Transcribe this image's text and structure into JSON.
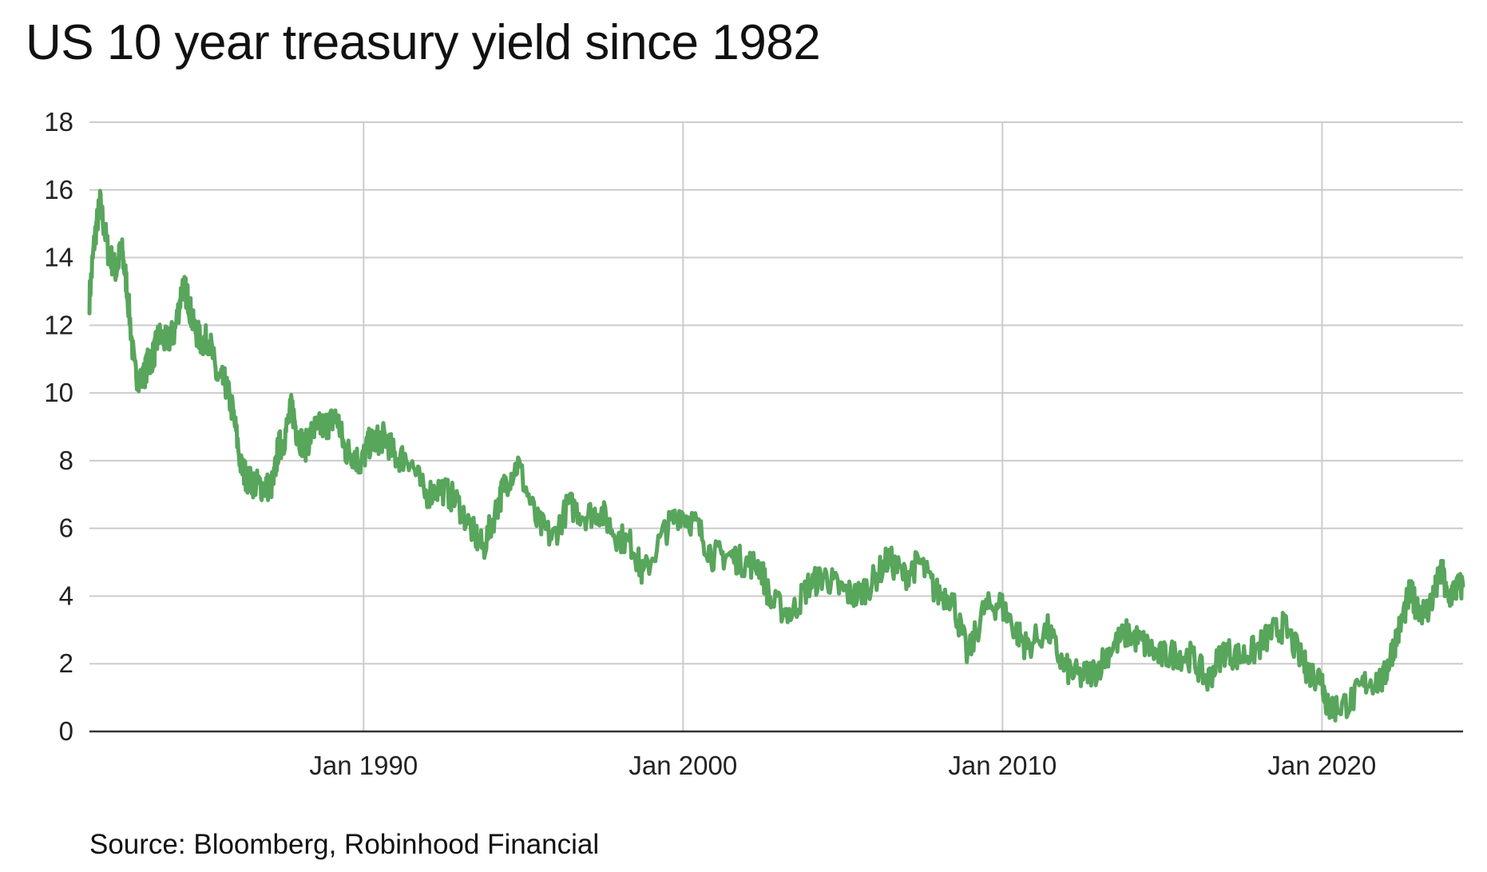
{
  "title": "US 10 year treasury yield since 1982",
  "source": "Source: Bloomberg, Robinhood Financial",
  "chart_data": {
    "type": "line",
    "title": "US 10 year treasury yield since 1982",
    "xlabel": "",
    "ylabel": "",
    "xlim": [
      "1981-06",
      "2024-06"
    ],
    "ylim": [
      0,
      18
    ],
    "y_ticks": [
      "0",
      "2",
      "4",
      "6",
      "8",
      "10",
      "12",
      "14",
      "16",
      "18"
    ],
    "x_ticks": [
      {
        "label": "Jan 1990",
        "date": "1990-01"
      },
      {
        "label": "Jan 2000",
        "date": "2000-01"
      },
      {
        "label": "Jan 2010",
        "date": "2010-01"
      },
      {
        "label": "Jan 2020",
        "date": "2020-01"
      }
    ],
    "grid": true,
    "legend": "none",
    "series": [
      {
        "color": "#58a55c",
        "x": [
          "1981-06",
          "1981-08",
          "1981-10",
          "1982-01",
          "1982-04",
          "1982-06",
          "1982-08",
          "1982-11",
          "1983-02",
          "1983-04",
          "1983-06",
          "1983-08",
          "1983-11",
          "1984-02",
          "1984-05",
          "1984-07",
          "1984-09",
          "1984-12",
          "1985-03",
          "1985-06",
          "1985-09",
          "1985-12",
          "1986-03",
          "1986-06",
          "1986-09",
          "1986-12",
          "1987-03",
          "1987-05",
          "1987-07",
          "1987-10",
          "1987-12",
          "1988-03",
          "1988-06",
          "1988-09",
          "1988-12",
          "1989-03",
          "1989-06",
          "1989-09",
          "1989-12",
          "1990-03",
          "1990-06",
          "1990-09",
          "1991-01",
          "1991-06",
          "1991-12",
          "1992-06",
          "1992-12",
          "1993-06",
          "1993-10",
          "1994-03",
          "1994-06",
          "1994-11",
          "1995-06",
          "1995-12",
          "1996-06",
          "1996-12",
          "1997-06",
          "1997-12",
          "1998-06",
          "1998-10",
          "1999-06",
          "1999-12",
          "2000-06",
          "2000-12",
          "2001-06",
          "2001-12",
          "2002-06",
          "2002-10",
          "2003-06",
          "2003-12",
          "2004-06",
          "2004-12",
          "2005-06",
          "2005-12",
          "2006-06",
          "2006-12",
          "2007-06",
          "2007-12",
          "2008-06",
          "2008-12",
          "2009-06",
          "2009-12",
          "2010-06",
          "2010-10",
          "2011-06",
          "2011-12",
          "2012-06",
          "2012-12",
          "2013-06",
          "2013-12",
          "2014-06",
          "2014-12",
          "2015-06",
          "2015-12",
          "2016-06",
          "2016-12",
          "2017-06",
          "2017-12",
          "2018-06",
          "2018-11",
          "2019-06",
          "2019-09",
          "2020-01",
          "2020-03",
          "2020-06",
          "2020-12",
          "2021-06",
          "2021-12",
          "2022-03",
          "2022-06",
          "2022-10",
          "2022-12",
          "2023-04",
          "2023-07",
          "2023-10",
          "2023-12",
          "2024-03",
          "2024-06"
        ],
        "values": [
          12.8,
          14.6,
          15.6,
          14.2,
          13.6,
          14.3,
          13.2,
          10.6,
          10.4,
          10.9,
          11.1,
          11.7,
          11.5,
          11.8,
          13.2,
          12.8,
          12.0,
          11.5,
          11.6,
          10.4,
          10.3,
          9.4,
          7.8,
          7.4,
          7.3,
          7.2,
          7.3,
          8.4,
          8.6,
          9.6,
          8.8,
          8.4,
          8.9,
          9.0,
          9.1,
          9.3,
          8.3,
          8.2,
          7.9,
          8.5,
          8.6,
          8.7,
          8.1,
          8.1,
          7.0,
          7.2,
          6.8,
          5.9,
          5.4,
          6.6,
          7.3,
          7.9,
          6.2,
          5.7,
          6.7,
          6.4,
          6.5,
          5.8,
          5.5,
          4.6,
          5.9,
          6.5,
          6.1,
          5.2,
          5.2,
          5.0,
          4.9,
          3.8,
          3.5,
          4.3,
          4.6,
          4.2,
          4.0,
          4.4,
          5.1,
          4.6,
          5.0,
          4.1,
          4.0,
          2.2,
          3.6,
          3.8,
          3.0,
          2.5,
          3.0,
          1.9,
          1.6,
          1.8,
          2.5,
          2.9,
          2.6,
          2.2,
          2.3,
          2.2,
          1.5,
          2.4,
          2.2,
          2.4,
          2.9,
          3.1,
          2.0,
          1.7,
          1.6,
          0.7,
          0.7,
          0.9,
          1.5,
          1.5,
          2.3,
          3.0,
          4.1,
          3.8,
          3.5,
          4.0,
          4.8,
          3.9,
          4.2,
          4.3
        ]
      }
    ]
  }
}
